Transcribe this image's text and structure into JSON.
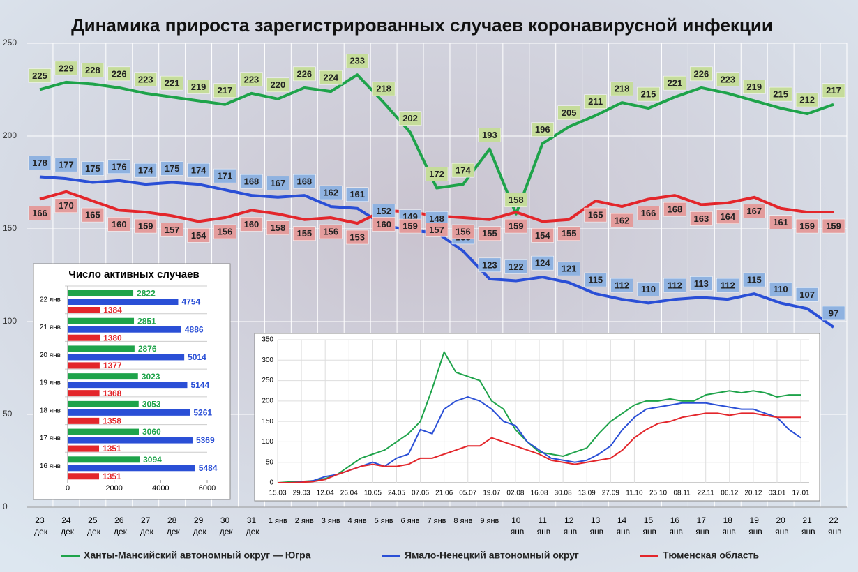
{
  "chart_data": [
    {
      "type": "line",
      "title": "Динамика прироста зарегистрированных случаев коронавирусной инфекции",
      "categories": [
        "23 дек",
        "24 дек",
        "25 дек",
        "26 дек",
        "27 дек",
        "28 дек",
        "29 дек",
        "30 дек",
        "31 дек",
        "1 янв",
        "2 янв",
        "3 янв",
        "4 янв",
        "5 янв",
        "6 янв",
        "7 янв",
        "8 янв",
        "9 янв",
        "10 янв",
        "11 янв",
        "12 янв",
        "13 янв",
        "14 янв",
        "15 янв",
        "16 янв",
        "17 янв",
        "18 янв",
        "19 янв",
        "20 янв",
        "21 янв",
        "22 янв"
      ],
      "series": [
        {
          "name": "Ханты-Мансийский автономный округ — Югра",
          "color": "#1ea34a",
          "label_color": "#c5dc9a",
          "values": [
            225,
            229,
            228,
            226,
            223,
            221,
            219,
            217,
            223,
            220,
            226,
            224,
            233,
            218,
            202,
            172,
            174,
            193,
            158,
            196,
            205,
            211,
            218,
            215,
            221,
            226,
            223,
            219,
            215,
            212,
            217
          ]
        },
        {
          "name": "Ямало-Ненецкий автономный округ",
          "color": "#2a4fd6",
          "label_color": "#8fb2e0",
          "values": [
            178,
            177,
            175,
            176,
            174,
            175,
            174,
            171,
            168,
            167,
            168,
            162,
            161,
            152,
            149,
            148,
            138,
            123,
            122,
            124,
            121,
            115,
            112,
            110,
            112,
            113,
            112,
            115,
            110,
            107,
            97
          ]
        },
        {
          "name": "Тюменская область",
          "color": "#e3262b",
          "label_color": "#e39c9c",
          "values": [
            166,
            170,
            165,
            160,
            159,
            157,
            154,
            156,
            160,
            158,
            155,
            156,
            153,
            160,
            159,
            157,
            156,
            155,
            159,
            154,
            155,
            165,
            162,
            166,
            168,
            163,
            164,
            167,
            161,
            159,
            159
          ]
        }
      ],
      "ylim": [
        0,
        250
      ],
      "yticks": [
        0,
        50,
        100,
        150,
        200,
        250
      ],
      "grid": true
    },
    {
      "type": "barh",
      "title": "Число активных случаев",
      "categories": [
        "22 янв",
        "21 янв",
        "20 янв",
        "19 янв",
        "18 янв",
        "17 янв",
        "16 янв"
      ],
      "series": [
        {
          "color": "#1ea34a",
          "values": [
            2822,
            2851,
            2876,
            3023,
            3053,
            3060,
            3094
          ]
        },
        {
          "color": "#2a4fd6",
          "values": [
            4754,
            4886,
            5014,
            5144,
            5261,
            5369,
            5484
          ]
        },
        {
          "color": "#e3262b",
          "values": [
            1384,
            1380,
            1377,
            1368,
            1358,
            1351,
            1351
          ]
        }
      ],
      "xlim": [
        0,
        6000
      ],
      "xticks": [
        0,
        2000,
        4000,
        6000
      ]
    },
    {
      "type": "line",
      "x": [
        "15.03",
        "22.03",
        "29.03",
        "05.04",
        "12.04",
        "19.04",
        "26.04",
        "03.05",
        "10.05",
        "17.05",
        "24.05",
        "31.05",
        "07.06",
        "14.06",
        "21.06",
        "28.06",
        "05.07",
        "12.07",
        "19.07",
        "26.07",
        "02.08",
        "09.08",
        "16.08",
        "23.08",
        "30.08",
        "06.09",
        "13.09",
        "20.09",
        "27.09",
        "04.10",
        "11.10",
        "18.10",
        "25.10",
        "01.11",
        "08.11",
        "15.11",
        "22.11",
        "29.11",
        "06.12",
        "13.12",
        "20.12",
        "27.12",
        "03.01",
        "10.01",
        "17.01"
      ],
      "series": [
        {
          "color": "#1ea34a",
          "values": [
            0,
            2,
            3,
            5,
            10,
            20,
            40,
            60,
            70,
            80,
            100,
            120,
            150,
            230,
            320,
            270,
            260,
            250,
            200,
            180,
            130,
            100,
            75,
            70,
            65,
            75,
            85,
            120,
            150,
            170,
            190,
            200,
            200,
            205,
            200,
            200,
            215,
            220,
            225,
            220,
            225,
            220,
            210,
            215,
            215
          ]
        },
        {
          "color": "#2a4fd6",
          "values": [
            0,
            0,
            2,
            5,
            15,
            20,
            30,
            40,
            50,
            40,
            60,
            70,
            130,
            120,
            180,
            200,
            210,
            200,
            180,
            150,
            140,
            100,
            80,
            60,
            55,
            50,
            55,
            70,
            90,
            130,
            160,
            180,
            185,
            190,
            195,
            195,
            195,
            190,
            185,
            180,
            180,
            170,
            160,
            130,
            110
          ]
        },
        {
          "color": "#e3262b",
          "values": [
            0,
            0,
            1,
            3,
            8,
            20,
            30,
            40,
            45,
            40,
            40,
            45,
            60,
            60,
            70,
            80,
            90,
            90,
            110,
            100,
            90,
            80,
            70,
            55,
            50,
            45,
            50,
            55,
            60,
            80,
            110,
            130,
            145,
            150,
            160,
            165,
            170,
            170,
            165,
            170,
            170,
            165,
            160,
            160,
            160
          ]
        }
      ],
      "xticks": [
        "15.03",
        "29.03",
        "12.04",
        "26.04",
        "10.05",
        "24.05",
        "07.06",
        "21.06",
        "05.07",
        "19.07",
        "02.08",
        "16.08",
        "30.08",
        "13.09",
        "27.09",
        "11.10",
        "25.10",
        "08.11",
        "22.11",
        "06.12",
        "20.12",
        "03.01",
        "17.01"
      ],
      "ylim": [
        0,
        350
      ],
      "yticks": [
        0,
        50,
        100,
        150,
        200,
        250,
        300,
        350
      ],
      "grid": true
    }
  ]
}
